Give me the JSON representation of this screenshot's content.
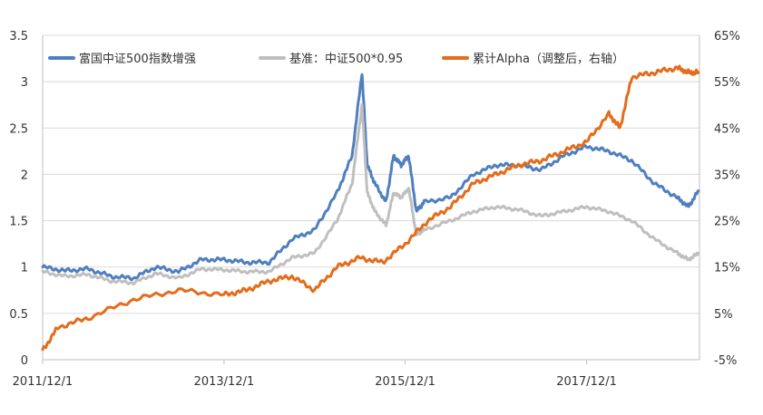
{
  "chart_data": {
    "type": "line",
    "title": "",
    "x_ticks": [
      "2011/12/1",
      "2013/12/1",
      "2015/12/1",
      "2017/12/1"
    ],
    "left_axis": {
      "min": 0,
      "max": 3.5,
      "step": 0.5,
      "tick_labels": [
        "0",
        "0.5",
        "1",
        "1.5",
        "2",
        "2.5",
        "3",
        "3.5"
      ]
    },
    "right_axis": {
      "min": -5,
      "max": 65,
      "step": 10,
      "tick_labels": [
        "-5%",
        "5%",
        "15%",
        "25%",
        "35%",
        "45%",
        "55%",
        "65%"
      ]
    },
    "grid": "horizontal",
    "legend_position": "top",
    "series": [
      {
        "name": "富国中证500指数增强",
        "axis": "left",
        "color": "#4f7fbf",
        "x": [
          "2011-12-01",
          "2012-03-01",
          "2012-06-01",
          "2012-09-01",
          "2012-12-01",
          "2013-03-01",
          "2013-06-01",
          "2013-09-01",
          "2013-12-01",
          "2014-03-01",
          "2014-06-01",
          "2014-09-01",
          "2014-12-01",
          "2015-03-01",
          "2015-05-01",
          "2015-06-10",
          "2015-07-01",
          "2015-08-01",
          "2015-09-15",
          "2015-10-15",
          "2015-11-15",
          "2015-12-15",
          "2016-01-15",
          "2016-02-15",
          "2016-06-01",
          "2016-09-01",
          "2016-12-01",
          "2017-03-01",
          "2017-06-01",
          "2017-09-01",
          "2017-12-01",
          "2018-03-01",
          "2018-06-01",
          "2018-09-01",
          "2018-12-01",
          "2019-01-15",
          "2019-02-25"
        ],
        "values": [
          1.0,
          0.96,
          0.98,
          0.9,
          0.88,
          1.0,
          0.95,
          1.08,
          1.08,
          1.05,
          1.05,
          1.3,
          1.4,
          1.8,
          2.2,
          3.1,
          2.1,
          1.9,
          1.7,
          2.2,
          2.1,
          2.2,
          1.6,
          1.7,
          1.75,
          2.0,
          2.1,
          2.1,
          2.05,
          2.2,
          2.3,
          2.25,
          2.15,
          1.9,
          1.75,
          1.65,
          1.82
        ]
      },
      {
        "name": "基准：中证500*0.95",
        "axis": "left",
        "color": "#bfbfbf",
        "x": [
          "2011-12-01",
          "2012-03-01",
          "2012-06-01",
          "2012-09-01",
          "2012-12-01",
          "2013-03-01",
          "2013-06-01",
          "2013-09-01",
          "2013-12-01",
          "2014-03-01",
          "2014-06-01",
          "2014-09-01",
          "2014-12-01",
          "2015-03-01",
          "2015-05-01",
          "2015-06-10",
          "2015-07-01",
          "2015-08-01",
          "2015-09-15",
          "2015-10-15",
          "2015-11-15",
          "2015-12-15",
          "2016-01-15",
          "2016-02-15",
          "2016-06-01",
          "2016-09-01",
          "2016-12-01",
          "2017-03-01",
          "2017-06-01",
          "2017-09-01",
          "2017-12-01",
          "2018-03-01",
          "2018-06-01",
          "2018-09-01",
          "2018-12-01",
          "2019-01-15",
          "2019-02-25"
        ],
        "values": [
          0.95,
          0.9,
          0.92,
          0.85,
          0.83,
          0.93,
          0.88,
          0.98,
          0.97,
          0.95,
          0.95,
          1.1,
          1.15,
          1.5,
          1.9,
          2.75,
          1.8,
          1.6,
          1.45,
          1.8,
          1.75,
          1.85,
          1.35,
          1.4,
          1.5,
          1.6,
          1.65,
          1.62,
          1.55,
          1.6,
          1.65,
          1.6,
          1.5,
          1.3,
          1.15,
          1.08,
          1.15
        ]
      },
      {
        "name": "累计Alpha（调整后，右轴）",
        "axis": "right",
        "color": "#e46c1a",
        "x": [
          "2011-12-01",
          "2012-02-01",
          "2012-06-01",
          "2012-12-01",
          "2013-06-01",
          "2013-12-01",
          "2014-03-01",
          "2014-06-01",
          "2014-09-01",
          "2014-12-01",
          "2015-03-01",
          "2015-06-01",
          "2015-09-01",
          "2015-12-01",
          "2016-03-01",
          "2016-06-01",
          "2016-09-01",
          "2016-12-01",
          "2017-03-01",
          "2017-06-01",
          "2017-09-01",
          "2017-12-01",
          "2018-03-01",
          "2018-04-15",
          "2018-06-01",
          "2018-09-01",
          "2018-12-01",
          "2019-01-15",
          "2019-02-25"
        ],
        "values": [
          -3,
          2,
          4,
          8,
          10,
          9,
          10,
          12,
          13,
          10,
          15,
          17,
          16,
          20,
          25,
          28,
          33,
          35,
          37,
          38,
          40,
          42,
          48,
          45,
          56,
          57,
          58,
          57,
          57
        ]
      }
    ]
  }
}
